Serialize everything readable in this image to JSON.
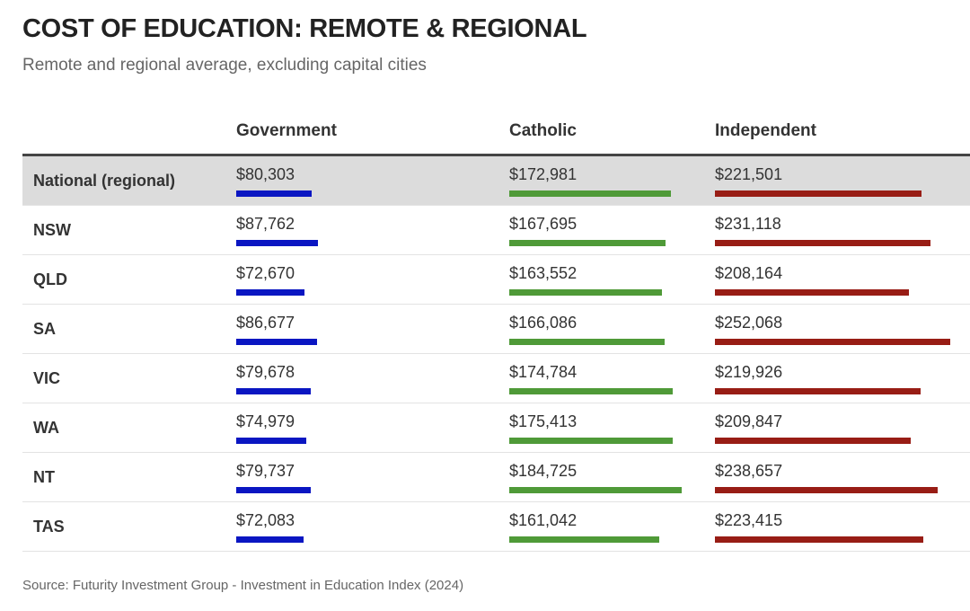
{
  "title": "COST OF EDUCATION: REMOTE & REGIONAL",
  "subtitle": "Remote and regional average, excluding capital cities",
  "source": "Source: Futurity Investment Group - Investment in Education Index (2024)",
  "chart_data": {
    "type": "table",
    "columns": [
      "Government",
      "Catholic",
      "Independent"
    ],
    "colors": {
      "Government": "#0a16c2",
      "Catholic": "#4f9a38",
      "Independent": "#981d15"
    },
    "rows": [
      {
        "label": "National (regional)",
        "highlight": true,
        "values": [
          80303,
          172981,
          221501
        ],
        "display": [
          "$80,303",
          "$172,981",
          "$221,501"
        ]
      },
      {
        "label": "NSW",
        "values": [
          87762,
          167695,
          231118
        ],
        "display": [
          "$87,762",
          "$167,695",
          "$231,118"
        ]
      },
      {
        "label": "QLD",
        "values": [
          72670,
          163552,
          208164
        ],
        "display": [
          "$72,670",
          "$163,552",
          "$208,164"
        ]
      },
      {
        "label": "SA",
        "values": [
          86677,
          166086,
          252068
        ],
        "display": [
          "$86,677",
          "$166,086",
          "$252,068"
        ]
      },
      {
        "label": "VIC",
        "values": [
          79678,
          174784,
          219926
        ],
        "display": [
          "$79,678",
          "$174,784",
          "$219,926"
        ]
      },
      {
        "label": "WA",
        "values": [
          74979,
          175413,
          209847
        ],
        "display": [
          "$74,979",
          "$175,413",
          "$209,847"
        ]
      },
      {
        "label": "NT",
        "values": [
          79737,
          184725,
          238657
        ],
        "display": [
          "$79,737",
          "$184,725",
          "$238,657"
        ]
      },
      {
        "label": "TAS",
        "values": [
          72083,
          161042,
          223415
        ],
        "display": [
          "$72,083",
          "$161,042",
          "$223,415"
        ]
      }
    ]
  }
}
